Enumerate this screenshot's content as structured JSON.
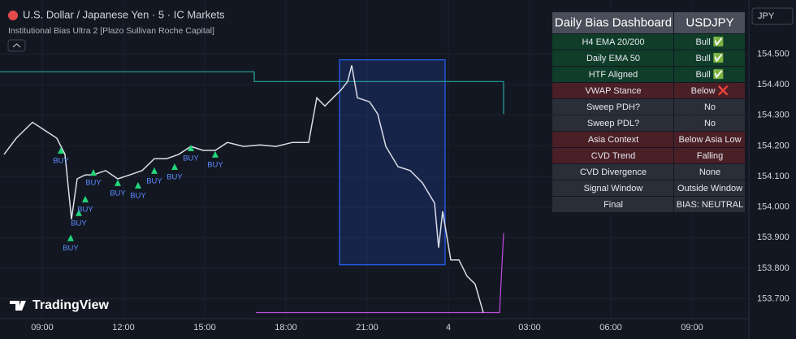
{
  "header": {
    "symbol": "U.S. Dollar / Japanese Yen · 5 · IC Markets",
    "indicator": "Institutional Bias Ultra 2 [Plazo Sullivan Roche Capital]",
    "brand": "TradingView",
    "currency": "JPY"
  },
  "dashboard": {
    "headers": [
      "Daily Bias Dashboard",
      "USDJPY"
    ],
    "rows": [
      {
        "label": "H4 EMA 20/200",
        "value": "Bull ✅",
        "color": "#0f3d2a"
      },
      {
        "label": "Daily EMA 50",
        "value": "Bull ✅",
        "color": "#0f3d2a"
      },
      {
        "label": "HTF Aligned",
        "value": "Bull ✅",
        "color": "#0f3d2a"
      },
      {
        "label": "VWAP Stance",
        "value": "Below ❌",
        "color": "#4a1f26"
      },
      {
        "label": "Sweep PDH?",
        "value": "No",
        "color": "#2a2e39"
      },
      {
        "label": "Sweep PDL?",
        "value": "No",
        "color": "#2a2e39"
      },
      {
        "label": "Asia Context",
        "value": "Below Asia Low",
        "color": "#4a1f26"
      },
      {
        "label": "CVD Trend",
        "value": "Falling",
        "color": "#4a1f26"
      },
      {
        "label": "CVD Divergence",
        "value": "None",
        "color": "#2a2e39"
      },
      {
        "label": "Signal Window",
        "value": "Outside Window",
        "color": "#2a2e39"
      },
      {
        "label": "Final",
        "value": "BIAS: NEUTRAL",
        "color": "#2a2e39"
      }
    ]
  },
  "chart_data": {
    "type": "line",
    "x": [
      7.59,
      8.04,
      8.64,
      9.09,
      9.54,
      9.84,
      10.08,
      10.29,
      10.59,
      10.89,
      11.34,
      11.79,
      12.24,
      12.69,
      13.14,
      13.59,
      14.04,
      14.49,
      14.94,
      15.39,
      15.84,
      16.44,
      17.04,
      17.64,
      18.24,
      18.84,
      19.14,
      19.44,
      19.74,
      20.04,
      20.28,
      20.43,
      20.64,
      21.09,
      21.39,
      21.69,
      22.14,
      22.59,
      23.04,
      23.49,
      23.64,
      23.79,
      24.09,
      24.39,
      24.69,
      24.99,
      25.29
    ],
    "series": [
      {
        "color": "#d9dde6",
        "values": [
          154.172,
          154.225,
          154.277,
          154.251,
          154.225,
          154.172,
          153.96,
          154.092,
          154.105,
          154.105,
          154.119,
          154.092,
          154.105,
          154.119,
          154.158,
          154.158,
          154.172,
          154.198,
          154.185,
          154.185,
          154.211,
          154.198,
          154.203,
          154.198,
          154.211,
          154.211,
          154.357,
          154.33,
          154.357,
          154.383,
          154.41,
          154.463,
          154.357,
          154.344,
          154.304,
          154.198,
          154.132,
          154.119,
          154.079,
          154.013,
          153.867,
          153.986,
          153.827,
          153.827,
          153.774,
          153.748,
          153.655
        ]
      }
    ],
    "overlays": [
      {
        "color": "#26a69a",
        "x": [
          7.44,
          16.83,
          16.83,
          26.04,
          26.04
        ],
        "values": [
          154.442,
          154.442,
          154.41,
          154.41,
          154.304
        ]
      },
      {
        "color": "#c04ce0",
        "x": [
          16.89,
          25.89,
          26.04
        ],
        "values": [
          153.655,
          153.655,
          153.915
        ]
      }
    ],
    "box": {
      "x": [
        19.98,
        23.88
      ],
      "y": [
        153.811,
        154.481
      ],
      "color": "#2962ff"
    },
    "signals": [
      {
        "label": "BUY",
        "x": 10.05,
        "y": 153.899
      },
      {
        "label": "BUY",
        "x": 10.35,
        "y": 153.981
      },
      {
        "label": "BUY",
        "x": 10.59,
        "y": 154.026
      },
      {
        "label": "BUY",
        "x": 10.89,
        "y": 154.113
      },
      {
        "label": "BUY",
        "x": 11.79,
        "y": 154.079
      },
      {
        "label": "BUY",
        "x": 12.54,
        "y": 154.071
      },
      {
        "label": "BUY",
        "x": 13.14,
        "y": 154.119
      },
      {
        "label": "BUY",
        "x": 13.89,
        "y": 154.132
      },
      {
        "label": "BUY",
        "x": 14.49,
        "y": 154.193
      },
      {
        "label": "BUY",
        "x": 15.39,
        "y": 154.172
      },
      {
        "label": "BUY",
        "x": 9.69,
        "y": 154.185
      }
    ],
    "xlim": [
      7.44,
      35.1
    ],
    "xticks": [
      {
        "value": 9,
        "label": "09:00"
      },
      {
        "value": 12,
        "label": "12:00"
      },
      {
        "value": 15,
        "label": "15:00"
      },
      {
        "value": 18,
        "label": "18:00"
      },
      {
        "value": 21,
        "label": "21:00"
      },
      {
        "value": 24,
        "label": "4"
      },
      {
        "value": 27,
        "label": "03:00"
      },
      {
        "value": 30,
        "label": "06:00"
      },
      {
        "value": 33,
        "label": "09:00"
      }
    ],
    "ylim": [
      153.635,
      154.65
    ],
    "yticks": [
      {
        "value": 154.5,
        "label": "154.500"
      },
      {
        "value": 154.4,
        "label": "154.400"
      },
      {
        "value": 154.3,
        "label": "154.300"
      },
      {
        "value": 154.2,
        "label": "154.200"
      },
      {
        "value": 154.1,
        "label": "154.100"
      },
      {
        "value": 154.0,
        "label": "154.000"
      },
      {
        "value": 153.9,
        "label": "153.900"
      },
      {
        "value": 153.8,
        "label": "153.800"
      },
      {
        "value": 153.7,
        "label": "153.700"
      }
    ],
    "grid": true
  }
}
